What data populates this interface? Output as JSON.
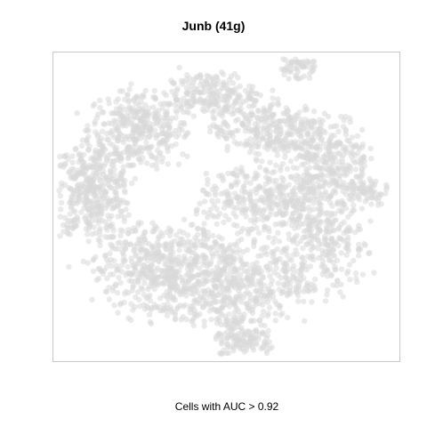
{
  "chart_data": {
    "type": "scatter",
    "title": "Junb (41g)",
    "xlabel": "Cells with AUC > 0.92",
    "ylabel": "",
    "axes_shown": false,
    "grid": false,
    "legend": "none",
    "point_color": "#d9d9d9",
    "frame_color": "#c8c8c8",
    "highlighted_points": 0,
    "clusters": [
      {
        "cx": -0.55,
        "cy": 0.55,
        "rx": 0.32,
        "ry": 0.28,
        "n": 380
      },
      {
        "cx": -0.85,
        "cy": 0.1,
        "rx": 0.25,
        "ry": 0.35,
        "n": 420
      },
      {
        "cx": -0.4,
        "cy": -0.45,
        "rx": 0.45,
        "ry": 0.35,
        "n": 520
      },
      {
        "cx": 0.05,
        "cy": -0.55,
        "rx": 0.45,
        "ry": 0.35,
        "n": 470
      },
      {
        "cx": 0.1,
        "cy": -0.95,
        "rx": 0.2,
        "ry": 0.18,
        "n": 150
      },
      {
        "cx": -0.1,
        "cy": 0.8,
        "rx": 0.28,
        "ry": 0.15,
        "n": 200
      },
      {
        "cx": 0.25,
        "cy": 0.55,
        "rx": 0.35,
        "ry": 0.22,
        "n": 300
      },
      {
        "cx": 0.65,
        "cy": 0.35,
        "rx": 0.25,
        "ry": 0.3,
        "n": 280
      },
      {
        "cx": 0.6,
        "cy": -0.2,
        "rx": 0.3,
        "ry": 0.45,
        "n": 380
      },
      {
        "cx": 0.2,
        "cy": 0.05,
        "rx": 0.4,
        "ry": 0.25,
        "n": 300
      },
      {
        "cx": 0.9,
        "cy": 0.1,
        "rx": 0.12,
        "ry": 0.1,
        "n": 60
      },
      {
        "cx": 0.45,
        "cy": 1.0,
        "rx": 0.12,
        "ry": 0.1,
        "n": 70
      }
    ]
  }
}
